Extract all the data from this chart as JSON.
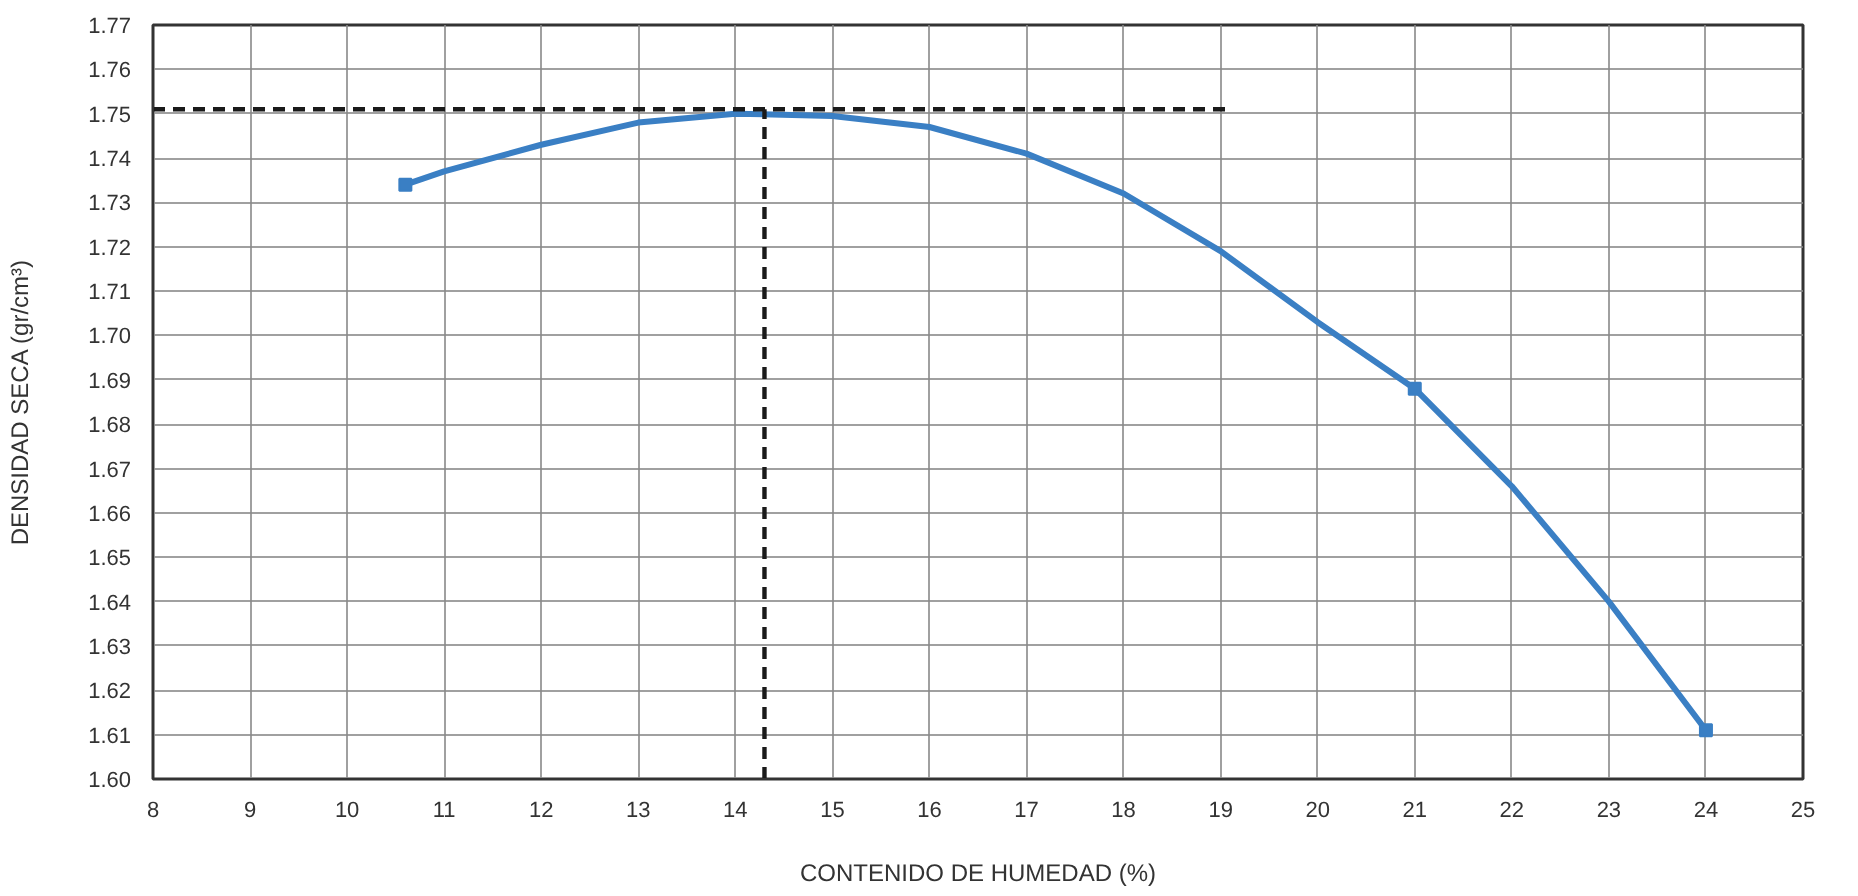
{
  "chart_data": {
    "type": "line",
    "xlabel": "CONTENIDO DE HUMEDAD (%)",
    "ylabel": "DENSIDAD SECA (gr/cm³)",
    "xlim": [
      8,
      25
    ],
    "ylim": [
      1.6,
      1.77
    ],
    "xticks": [
      8,
      9,
      10,
      11,
      12,
      13,
      14,
      15,
      16,
      17,
      18,
      19,
      20,
      21,
      22,
      23,
      24,
      25
    ],
    "yticks": [
      {
        "value": 1.6,
        "label": "1.60"
      },
      1.61,
      1.62,
      1.63,
      1.64,
      1.65,
      1.66,
      1.67,
      1.68,
      1.69,
      {
        "value": 1.7,
        "label": "1.70"
      },
      1.71,
      1.72,
      1.73,
      1.74,
      1.75,
      1.76,
      1.77
    ],
    "grid": true,
    "series": [
      {
        "color": "#3a7fc4",
        "marker": "none",
        "line_style": "solid",
        "x": [
          10.6,
          11,
          12,
          13,
          14,
          15,
          16,
          17,
          18,
          19,
          20,
          21,
          22,
          23,
          24
        ],
        "values": [
          1.734,
          1.737,
          1.743,
          1.748,
          1.75,
          1.7495,
          1.747,
          1.741,
          1.732,
          1.719,
          1.703,
          1.688,
          1.666,
          1.64,
          1.611
        ]
      },
      {
        "type": "scatter",
        "color": "#3a7fc4",
        "marker": "square",
        "x": [
          10.6,
          21,
          24
        ],
        "values": [
          1.734,
          1.688,
          1.611
        ]
      },
      {
        "type": "line",
        "color": "#1a1a1a",
        "marker": "none",
        "line_style": "dashed",
        "x": [
          8,
          19.1
        ],
        "values": [
          1.751,
          1.751
        ]
      },
      {
        "type": "line",
        "color": "#1a1a1a",
        "marker": "none",
        "line_style": "dashed",
        "x": [
          14.3,
          14.3
        ],
        "values": [
          1.6,
          1.751
        ]
      }
    ]
  }
}
